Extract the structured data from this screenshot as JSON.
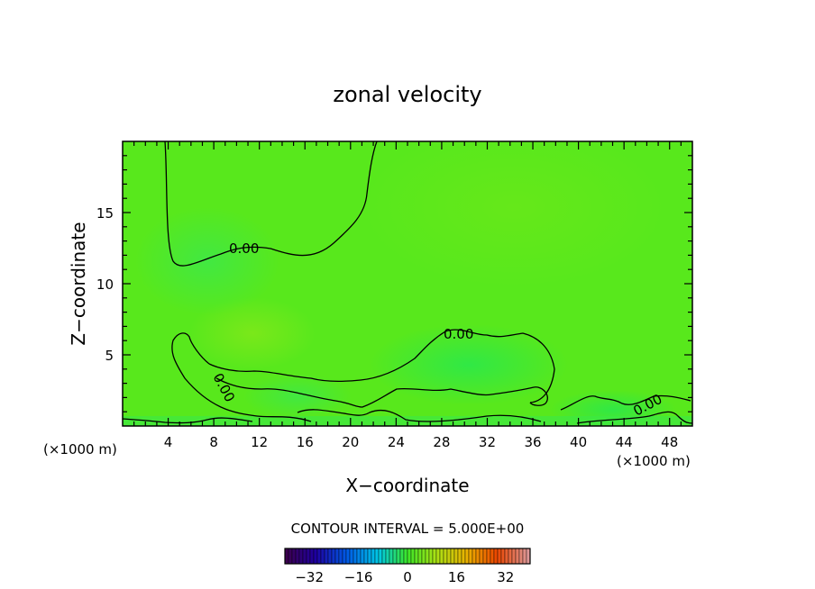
{
  "chart_data": {
    "type": "heatmap",
    "title": "zonal velocity",
    "xlabel": "X−coordinate",
    "ylabel": "Z−coordinate",
    "x_unit": "(×1000 m)",
    "xlim": [
      0,
      50
    ],
    "ylim": [
      0,
      20
    ],
    "x_ticks": [
      4,
      8,
      12,
      16,
      20,
      24,
      28,
      32,
      36,
      40,
      44,
      48
    ],
    "y_ticks": [
      5,
      10,
      15
    ],
    "grid": false,
    "contour_interval_label": "CONTOUR INTERVAL = 5.000E+00",
    "contour_labels": [
      {
        "text": "0.00",
        "x": 10.9,
        "z": 12.4
      },
      {
        "text": "0.00",
        "x": 29.8,
        "z": 6.4
      },
      {
        "text": "0.00",
        "x": 8.6,
        "z": 3.3
      },
      {
        "text": "0.00",
        "x": 47.2,
        "z": 1.4
      }
    ],
    "colorbar": {
      "range": [
        -40,
        40
      ],
      "ticks": [
        -32,
        -16,
        0,
        16,
        32
      ],
      "tick_labels": [
        "−32",
        "−16",
        "0",
        "16",
        "32"
      ]
    }
  }
}
